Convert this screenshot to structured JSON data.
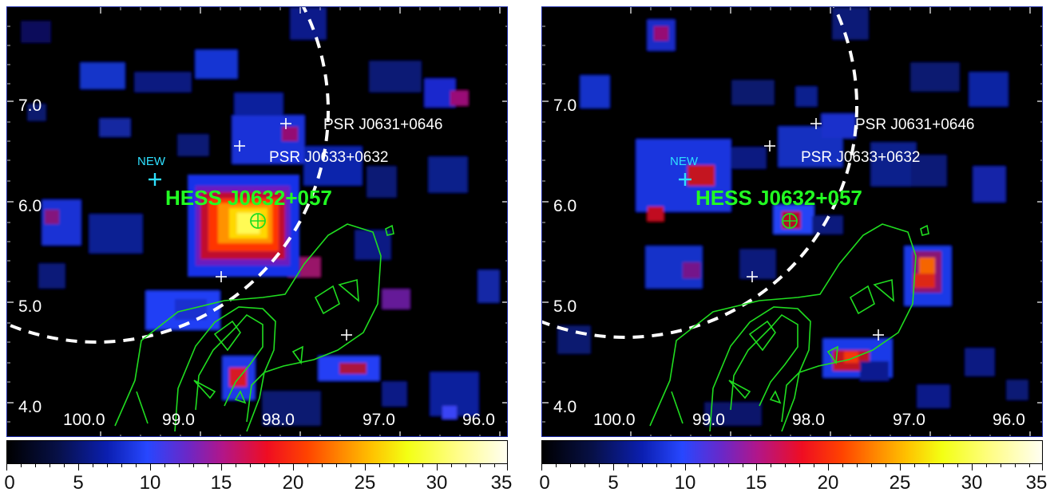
{
  "panels": [
    {
      "id": "left",
      "colorbar": {
        "range": [
          0,
          35
        ],
        "ticks": [
          "0",
          "5",
          "10",
          "15",
          "20",
          "25",
          "30",
          "35"
        ]
      },
      "labels": {
        "pulsar_1": "PSR J0631+0646",
        "pulsar_2": "PSR J0633+0632",
        "source": "HESS J0632+057",
        "new_source": "NEW",
        "x_ticks": [
          "100.0",
          "99.0",
          "98.0",
          "97.0",
          "96.0"
        ],
        "y_ticks": [
          "7.0",
          "6.0",
          "5.0",
          "4.0"
        ]
      },
      "colors": {
        "text": "#ffffff",
        "source_label": "#22ff22",
        "new_label": "#2ee0ff",
        "contours": "#20dd20",
        "circle": "#ffffff"
      }
    },
    {
      "id": "right",
      "colorbar": {
        "range": [
          0,
          35
        ],
        "ticks": [
          "0",
          "5",
          "10",
          "15",
          "20",
          "25",
          "30",
          "35"
        ]
      },
      "labels": {
        "pulsar_1": "PSR J0631+0646",
        "pulsar_2": "PSR J0633+0632",
        "source": "HESS J0632+057",
        "new_source": "NEW",
        "x_ticks": [
          "100.0",
          "99.0",
          "98.0",
          "97.0",
          "96.0"
        ],
        "y_ticks": [
          "7.0",
          "6.0",
          "5.0",
          "4.0"
        ]
      },
      "colors": {
        "text": "#ffffff",
        "source_label": "#22ff22",
        "new_label": "#2ee0ff",
        "contours": "#20dd20",
        "circle": "#ffffff"
      }
    }
  ]
}
